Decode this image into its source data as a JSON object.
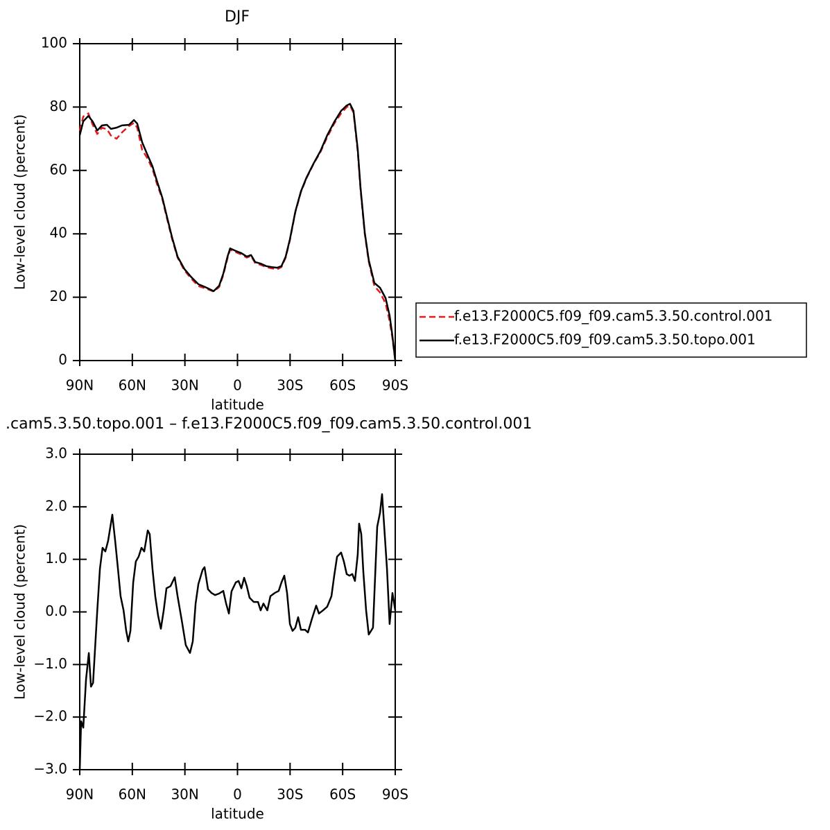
{
  "chart_data": [
    {
      "type": "line",
      "title": "DJF",
      "x_label": "latitude",
      "y_label": "Low-level cloud (percent)",
      "xlim": [
        90,
        -90
      ],
      "xticks": [
        {
          "value": 90,
          "label": "90N"
        },
        {
          "value": 60,
          "label": "60N"
        },
        {
          "value": 30,
          "label": "30N"
        },
        0,
        {
          "value": -30,
          "label": "30S"
        },
        {
          "value": -60,
          "label": "60S"
        },
        {
          "value": -90,
          "label": "90S"
        }
      ],
      "ylim": [
        0,
        100
      ],
      "yticks": [
        0,
        20,
        40,
        60,
        80,
        100
      ],
      "legend": "right",
      "x": [
        90,
        88,
        85.1,
        82.7,
        80,
        77.3,
        74.5,
        72.2,
        69,
        65.9,
        61.9,
        59.1,
        57.2,
        54.4,
        51.6,
        48.5,
        46.1,
        42.9,
        40.5,
        37.4,
        34.2,
        30.3,
        26.3,
        22.3,
        18.4,
        13.6,
        10.5,
        8.1,
        5.7,
        4.2,
        1,
        -2.2,
        -5.3,
        -7.7,
        -10.1,
        -13.2,
        -16.4,
        -19.6,
        -22.7,
        -25.1,
        -27.5,
        -29.9,
        -33,
        -36.2,
        -39.4,
        -43.3,
        -47.3,
        -51.2,
        -55.2,
        -59.1,
        -62.3,
        -64.2,
        -66.2,
        -68.6,
        -70.2,
        -72.6,
        -74.9,
        -78.1,
        -81.3,
        -84.5,
        -86.8,
        -88.4,
        -90
      ],
      "series": [
        {
          "name": "f.e13.F2000C5.f09_f09.cam5.3.50.control.001",
          "color": "#e41a1c",
          "dashed": true,
          "values": [
            72.5,
            77,
            78,
            74.5,
            71.5,
            73.5,
            73,
            71,
            70,
            72,
            74,
            75,
            73.5,
            66.5,
            64,
            60.5,
            56,
            51,
            45.5,
            38.5,
            32.5,
            28.5,
            25.8,
            23.5,
            22.8,
            21.8,
            23.2,
            27,
            32.3,
            35,
            34.2,
            33.5,
            32.5,
            33,
            30.8,
            30.2,
            29.5,
            29.1,
            28.8,
            29.5,
            32.5,
            38,
            46.8,
            53.2,
            57.6,
            62,
            65.8,
            70.5,
            74.8,
            78,
            80,
            80.5,
            78.2,
            66,
            54,
            40,
            31.2,
            23.5,
            21.5,
            18,
            12.5,
            7,
            0
          ]
        },
        {
          "name": "f.e13.F2000C5.f09_f09.cam5.3.50.topo.001",
          "color": "#000000",
          "dashed": false,
          "values": [
            71.1,
            75.5,
            77.2,
            75.5,
            72.6,
            74.2,
            74.4,
            73.1,
            73.5,
            74.2,
            74.4,
            75.9,
            74.8,
            68.9,
            65.2,
            61.3,
            56.9,
            51.4,
            46,
            39,
            32.8,
            28.9,
            26.3,
            24.1,
            23.2,
            21.9,
            23.6,
            27.4,
            32.8,
            35.4,
            34.6,
            33.9,
            32.8,
            33.3,
            31.1,
            30.6,
            29.8,
            29.5,
            29.3,
            29.8,
            32.8,
            38.3,
            47,
            53.4,
            57.8,
            62.1,
            66.1,
            71.1,
            75.3,
            78.8,
            80.5,
            81,
            78.8,
            66.7,
            54.7,
            40.5,
            31.7,
            24.5,
            23,
            19.7,
            14.2,
            7.7,
            0
          ]
        }
      ]
    },
    {
      "type": "line",
      "title": ".cam5.3.50.topo.001 – f.e13.F2000C5.f09_f09.cam5.3.50.control.001",
      "x_label": "latitude",
      "y_label": "Low-level cloud (percent)",
      "xlim": [
        90,
        -90
      ],
      "xticks": [
        {
          "value": 90,
          "label": "90N"
        },
        {
          "value": 60,
          "label": "60N"
        },
        {
          "value": 30,
          "label": "30N"
        },
        0,
        {
          "value": -30,
          "label": "30S"
        },
        {
          "value": -60,
          "label": "60S"
        },
        {
          "value": -90,
          "label": "90S"
        }
      ],
      "ylim": [
        -3,
        3
      ],
      "yticks": [
        {
          "value": -3,
          "label": "−3.0"
        },
        {
          "value": -2,
          "label": "−2.0"
        },
        {
          "value": -1,
          "label": "−1.0"
        },
        {
          "value": 0,
          "label": "0.0"
        },
        {
          "value": 1,
          "label": "1.0"
        },
        {
          "value": 2,
          "label": "2.0"
        },
        {
          "value": 3,
          "label": "3.0"
        }
      ],
      "x": [
        90,
        89.2,
        88,
        86.4,
        84.8,
        83.6,
        82.4,
        80,
        78.5,
        77,
        75.4,
        73.8,
        71.4,
        69.8,
        68.2,
        66.7,
        65,
        63.5,
        62.3,
        61.1,
        59.5,
        58,
        56.4,
        54.8,
        53.2,
        51.2,
        50.1,
        48.5,
        46.9,
        45.3,
        43.7,
        42.1,
        40.5,
        38.2,
        35.8,
        34.2,
        31.8,
        29.5,
        27.1,
        25.5,
        23.9,
        22.3,
        19.9,
        18.8,
        16.8,
        14.8,
        12.8,
        10.5,
        8.1,
        6.5,
        4.9,
        3.4,
        1,
        -0.6,
        -2.2,
        -3.8,
        -5.3,
        -6.9,
        -9.3,
        -11.7,
        -13.2,
        -14.8,
        -17,
        -18.8,
        -21.2,
        -23.5,
        -25.1,
        -26.7,
        -28.3,
        -29.9,
        -31.4,
        -33,
        -34.6,
        -36.2,
        -38.6,
        -40.2,
        -42.5,
        -44.9,
        -46.5,
        -48.8,
        -51.2,
        -53.6,
        -55.2,
        -56.8,
        -59.1,
        -60.7,
        -62.3,
        -63.9,
        -65.5,
        -67,
        -68.6,
        -69.4,
        -70.6,
        -71.8,
        -73.4,
        -74.9,
        -77.3,
        -79.7,
        -81.3,
        -82.5,
        -83.7,
        -85.3,
        -86.8,
        -88.4,
        -90
      ],
      "color": "#000000",
      "values": [
        -3,
        -2.08,
        -2.2,
        -1.28,
        -0.78,
        -1.42,
        -1.35,
        0.03,
        0.82,
        1.22,
        1.15,
        1.35,
        1.85,
        1.35,
        0.82,
        0.3,
        0.03,
        -0.36,
        -0.56,
        -0.36,
        0.56,
        0.96,
        1.05,
        1.22,
        1.15,
        1.55,
        1.48,
        0.82,
        0.3,
        -0.07,
        -0.32,
        0.03,
        0.45,
        0.49,
        0.66,
        0.3,
        -0.16,
        -0.63,
        -0.78,
        -0.56,
        0.16,
        0.53,
        0.8,
        0.85,
        0.43,
        0.36,
        0.32,
        0.35,
        0.4,
        0.16,
        -0.03,
        0.39,
        0.56,
        0.59,
        0.45,
        0.65,
        0.49,
        0.27,
        0.19,
        0.19,
        0.03,
        0.16,
        0.03,
        0.3,
        0.36,
        0.4,
        0.56,
        0.69,
        0.36,
        -0.23,
        -0.36,
        -0.3,
        -0.1,
        -0.34,
        -0.34,
        -0.39,
        -0.13,
        0.12,
        -0.03,
        0.03,
        0.1,
        0.3,
        0.69,
        1.05,
        1.13,
        0.96,
        0.72,
        0.69,
        0.72,
        0.59,
        1.09,
        1.68,
        1.48,
        0.76,
        0.03,
        -0.43,
        -0.3,
        1.62,
        1.88,
        2.24,
        1.62,
        0.82,
        -0.23,
        0.36,
        0.03
      ]
    }
  ]
}
